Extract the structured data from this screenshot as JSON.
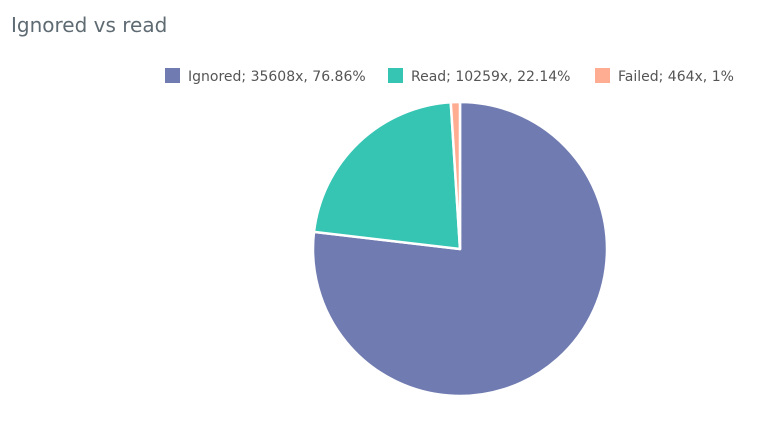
{
  "chart_data": {
    "type": "pie",
    "title": "Ignored vs read",
    "slices": [
      {
        "label": "Ignored",
        "count": 35608,
        "percent": 76.86,
        "color": "#707cb1",
        "legend": "Ignored; 35608x, 76.86%"
      },
      {
        "label": "Read",
        "count": 10259,
        "percent": 22.14,
        "color": "#36c4b3",
        "legend": "Read; 10259x, 22.14%"
      },
      {
        "label": "Failed",
        "count": 464,
        "percent": 1,
        "color": "#ffad92",
        "legend": "Failed; 464x, 1%"
      }
    ],
    "legend_position": "top-right"
  }
}
